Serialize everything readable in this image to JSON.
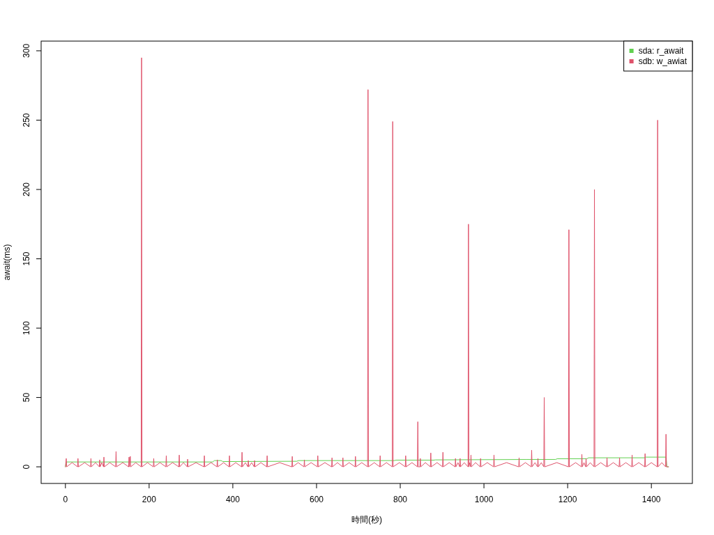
{
  "chart_data": {
    "type": "line",
    "xlabel": "時間(秒)",
    "ylabel": "await(ms)",
    "xlim": [
      -58,
      1498
    ],
    "ylim": [
      -12,
      307
    ],
    "xticks": [
      0,
      200,
      400,
      600,
      800,
      1000,
      1200,
      1400
    ],
    "yticks": [
      0,
      50,
      100,
      150,
      200,
      250,
      300
    ],
    "legend": "top right",
    "series": [
      {
        "name": "sda: r_await",
        "color": "#61d04f",
        "x": [
          0,
          2,
          352,
          356,
          372,
          376,
          553,
          557,
          786,
          790,
          880,
          884,
          1100,
          1171,
          1175,
          1246,
          1250,
          1383,
          1387,
          1435,
          1437,
          1441
        ],
        "values": [
          0,
          3.5,
          3.5,
          4.5,
          4.5,
          3.8,
          4,
          4.5,
          4.5,
          4.8,
          4.8,
          5,
          5.3,
          5.3,
          5.8,
          5.8,
          6.5,
          6.5,
          7,
          7,
          0,
          0
        ]
      },
      {
        "name": "sdb: w_awiat",
        "color": "#df536b",
        "x": [
          0,
          2,
          3,
          16,
          29,
          30,
          31,
          46,
          60,
          61,
          62,
          72,
          81,
          82,
          83,
          87,
          91,
          92,
          93,
          106,
          120,
          121,
          122,
          137,
          151,
          152,
          153,
          155,
          156,
          168,
          181,
          182,
          183,
          196,
          210,
          211,
          212,
          226,
          240,
          241,
          242,
          256,
          271,
          272,
          273,
          282,
          291,
          292,
          293,
          312,
          331,
          332,
          333,
          348,
          362,
          363,
          364,
          378,
          391,
          392,
          393,
          407,
          421,
          422,
          423,
          430,
          436,
          437,
          438,
          445,
          451,
          452,
          453,
          467,
          481,
          482,
          483,
          512,
          541,
          542,
          543,
          556,
          570,
          571,
          572,
          587,
          602,
          603,
          604,
          620,
          636,
          637,
          638,
          650,
          662,
          663,
          664,
          678,
          692,
          693,
          694,
          708,
          722,
          723,
          724,
          738,
          751,
          752,
          753,
          767,
          781,
          782,
          783,
          798,
          812,
          813,
          814,
          828,
          841,
          842,
          843,
          847,
          848,
          849,
          860,
          872,
          873,
          874,
          888,
          901,
          902,
          903,
          917,
          931,
          932,
          933,
          938,
          942,
          943,
          944,
          953,
          962,
          963,
          964,
          966,
          968,
          969,
          970,
          980,
          991,
          992,
          993,
          1008,
          1023,
          1024,
          1025,
          1054,
          1083,
          1084,
          1085,
          1099,
          1113,
          1114,
          1115,
          1122,
          1128,
          1129,
          1130,
          1137,
          1143,
          1144,
          1145,
          1174,
          1202,
          1203,
          1204,
          1219,
          1233,
          1234,
          1235,
          1239,
          1243,
          1244,
          1245,
          1254,
          1263,
          1264,
          1265,
          1279,
          1293,
          1294,
          1295,
          1309,
          1323,
          1324,
          1325,
          1339,
          1353,
          1354,
          1355,
          1370,
          1384,
          1385,
          1386,
          1400,
          1414,
          1415,
          1416,
          1425,
          1434,
          1435,
          1436,
          1441
        ],
        "values": [
          0,
          6,
          0,
          3,
          0,
          6,
          0,
          3,
          0,
          6,
          0,
          3,
          0,
          5,
          0,
          3,
          0,
          7,
          0,
          3,
          0,
          11,
          0,
          3,
          0,
          7,
          0,
          7.5,
          0,
          3,
          0,
          295,
          0,
          3,
          0,
          6,
          0,
          3,
          0,
          8,
          0,
          3,
          0,
          8.5,
          0,
          3,
          0,
          5.5,
          0,
          3,
          0,
          8,
          0,
          3,
          0,
          5,
          0,
          3,
          0,
          8,
          0,
          3,
          0,
          10.5,
          0,
          3,
          0,
          4.5,
          0,
          3,
          0,
          4.5,
          0,
          3,
          0,
          8,
          0,
          3,
          0,
          7.5,
          0,
          3,
          0,
          5,
          0,
          3,
          0,
          8,
          0,
          3,
          0,
          6.5,
          0,
          3,
          0,
          6.5,
          0,
          3,
          0,
          7.5,
          0,
          3,
          0,
          272,
          0,
          3,
          0,
          8,
          0,
          3,
          0,
          249,
          0,
          3,
          0,
          8,
          0,
          3,
          0,
          32.5,
          0,
          0,
          6,
          0,
          3,
          0,
          10,
          0,
          3,
          0,
          10.5,
          0,
          3,
          0,
          6,
          0,
          3,
          0,
          6,
          0,
          3,
          0,
          175,
          0,
          3,
          0,
          8.5,
          0,
          3,
          0,
          6,
          0,
          3,
          0,
          8.5,
          0,
          3,
          0,
          6.5,
          0,
          3,
          0,
          12,
          0,
          3,
          0,
          6,
          0,
          3,
          0,
          50,
          0,
          3,
          0,
          171,
          0,
          3,
          0,
          9,
          0,
          3,
          0,
          6,
          0,
          3,
          0,
          200,
          0,
          3,
          0,
          6.5,
          0,
          3,
          0,
          6.5,
          0,
          3,
          0,
          8.5,
          0,
          3,
          0,
          9.5,
          0,
          3,
          0,
          250,
          0,
          3,
          0,
          23.5,
          0,
          0
        ]
      }
    ]
  }
}
